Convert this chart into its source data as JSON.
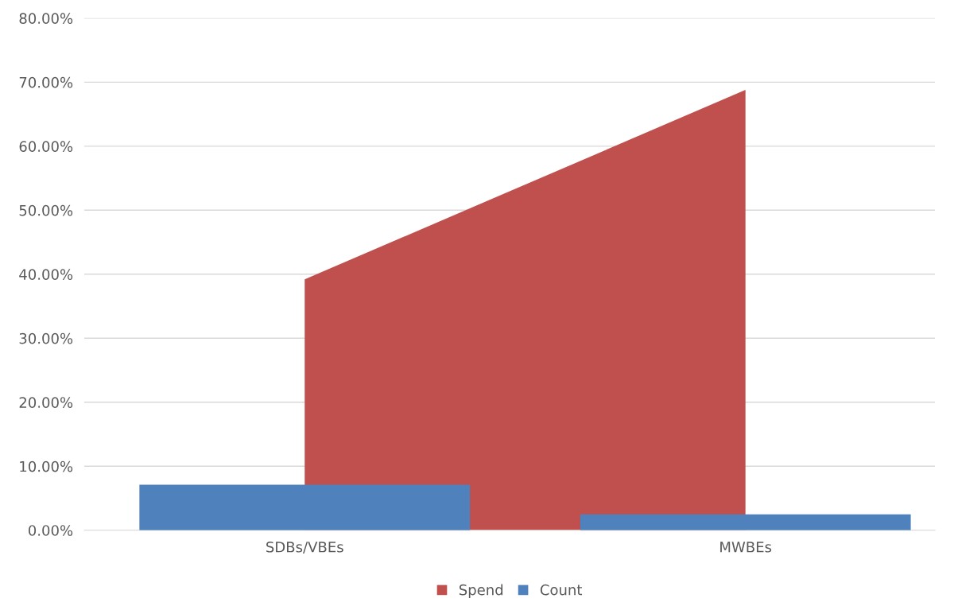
{
  "chart_data": {
    "type": "bar",
    "categories": [
      "SDBs/VBEs",
      "MWBEs"
    ],
    "series": [
      {
        "name": "Spend",
        "type": "area",
        "color": "#c0504d",
        "values": [
          39.2,
          68.8
        ]
      },
      {
        "name": "Count",
        "color": "#4f81bd",
        "values": [
          7.1,
          2.5
        ]
      }
    ],
    "ylim": [
      0,
      80
    ],
    "yticks": [
      {
        "value": 0,
        "label": "0.00%"
      },
      {
        "value": 10,
        "label": "10.00%"
      },
      {
        "value": 20,
        "label": "20.00%"
      },
      {
        "value": 30,
        "label": "30.00%"
      },
      {
        "value": 40,
        "label": "40.00%"
      },
      {
        "value": 50,
        "label": "50.00%"
      },
      {
        "value": 60,
        "label": "60.00%"
      },
      {
        "value": 70,
        "label": "70.00%"
      },
      {
        "value": 80,
        "label": "80.00%"
      }
    ],
    "grid": "y",
    "legend": "bottom"
  }
}
